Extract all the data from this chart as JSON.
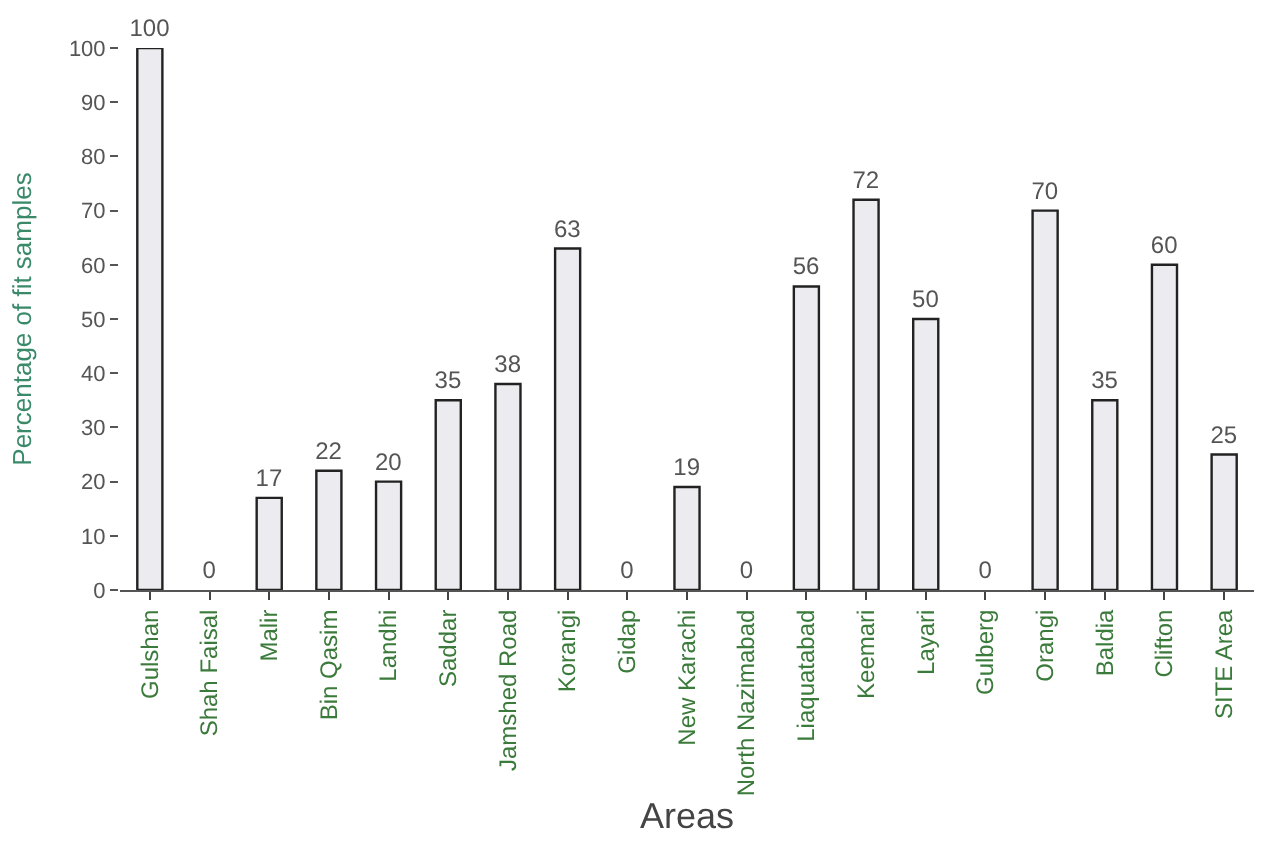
{
  "chart_data": {
    "type": "bar",
    "xlabel": "Areas",
    "ylabel": "Percentage of fit samples",
    "categories": [
      "Gulshan",
      "Shah Faisal",
      "Malir",
      "Bin Qasim",
      "Landhi",
      "Saddar",
      "Jamshed Road",
      "Korangi",
      "Gidap",
      "New Karachi",
      "North Nazimabad",
      "Liaquatabad",
      "Keemari",
      "Layari",
      "Gulberg",
      "Orangi",
      "Baldia",
      "Clifton",
      "SITE Area"
    ],
    "values": [
      100,
      0,
      17,
      22,
      20,
      35,
      38,
      63,
      0,
      19,
      0,
      56,
      72,
      50,
      0,
      70,
      35,
      60,
      25
    ],
    "color": "#ececf0",
    "ylim": [
      0,
      100
    ],
    "yticks": [
      0,
      10,
      20,
      30,
      40,
      50,
      60,
      70,
      80,
      90,
      100
    ],
    "data_labels": true
  }
}
